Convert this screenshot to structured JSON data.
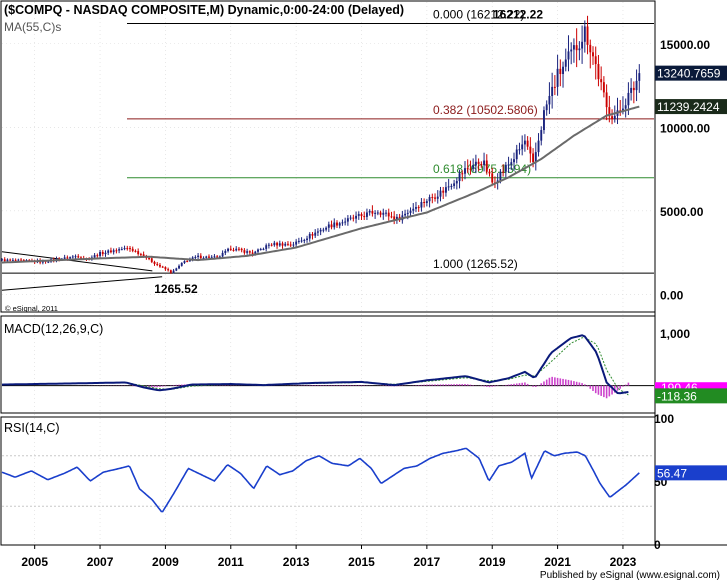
{
  "colors": {
    "background": "#ffffff",
    "frame": "#000000",
    "grid": "#d8d8d8",
    "candle_up": "#1a237e",
    "candle_down": "#cc0000",
    "ma_line": "#6a6a6a",
    "fib_top": "#000000",
    "fib_382": "#8b1a1a",
    "fib_618": "#2e8b2e",
    "fib_100": "#000000",
    "trendline": "#000000",
    "macd_line": "#0a1a7a",
    "macd_signal": "#2e8b2e",
    "histogram": "#cc44cc",
    "rsi_line": "#1a3fcc",
    "rsi_ref": "#c8c8c8",
    "last_price_box": "#0a1a3a",
    "ma_box": "#1a2a1a",
    "macd_box": "#ff00ff",
    "macd_value_box": "#228b22"
  },
  "chart_data": [
    {
      "panel": "price",
      "type": "candlestick",
      "title": "($COMPQ - NASDAQ COMPOSITE,M) Dynamic,0:00-24:00 (Delayed)",
      "ma_label": "MA(55,C)s",
      "watermark": "© eSignal, 2011",
      "ylim": [
        -1000,
        17500
      ],
      "y_ticks": [
        {
          "value": 0,
          "label": "0.00"
        },
        {
          "value": 5000,
          "label": "5000.00"
        },
        {
          "value": 10000,
          "label": "10000.00"
        },
        {
          "value": 15000,
          "label": "15000.00"
        }
      ],
      "x_ticks": [
        "2005",
        "2007",
        "2009",
        "2011",
        "2013",
        "2015",
        "2017",
        "2019",
        "2021",
        "2023"
      ],
      "x_tick_years": [
        2005,
        2007,
        2009,
        2011,
        2013,
        2015,
        2017,
        2019,
        2021,
        2023
      ],
      "last_price": {
        "value": 13240.7659,
        "label": "13240.7659"
      },
      "ma_value": {
        "value": 11239.2424,
        "label": "11239.2424"
      },
      "peak_label": {
        "value": 16212.22,
        "year": 2021.9,
        "label": "16212.22"
      },
      "low_label": {
        "value": 1265.52,
        "year": 2009.2,
        "label": "1265.52"
      },
      "fib_levels": [
        {
          "ratio": 0.0,
          "value": 16212.22,
          "label": "0.000 (16212.22)"
        },
        {
          "ratio": 0.382,
          "value": 10502.5806,
          "label": "0.382 (10502.5806)"
        },
        {
          "ratio": 0.618,
          "value": 6975.1594,
          "label": "0.618 (6975.1594)"
        },
        {
          "ratio": 1.0,
          "value": 1265.52,
          "label": "1.000 (1265.52)"
        }
      ],
      "trendline": [
        {
          "year": 2004.0,
          "value": 2550
        },
        {
          "year": 2008.6,
          "value": 1400
        }
      ],
      "close_anchors": [
        [
          2004.0,
          2050
        ],
        [
          2004.6,
          2000
        ],
        [
          2005.2,
          1950
        ],
        [
          2005.9,
          2150
        ],
        [
          2006.3,
          2300
        ],
        [
          2006.6,
          2100
        ],
        [
          2007.0,
          2450
        ],
        [
          2007.6,
          2700
        ],
        [
          2007.9,
          2750
        ],
        [
          2008.3,
          2350
        ],
        [
          2008.8,
          1700
        ],
        [
          2009.2,
          1300
        ],
        [
          2009.6,
          2000
        ],
        [
          2010.0,
          2250
        ],
        [
          2010.6,
          2200
        ],
        [
          2011.0,
          2750
        ],
        [
          2011.7,
          2450
        ],
        [
          2012.2,
          3000
        ],
        [
          2012.9,
          3000
        ],
        [
          2013.5,
          3600
        ],
        [
          2014.0,
          4100
        ],
        [
          2014.6,
          4450
        ],
        [
          2015.5,
          5000
        ],
        [
          2016.1,
          4500
        ],
        [
          2016.6,
          5200
        ],
        [
          2017.5,
          6200
        ],
        [
          2018.2,
          7500
        ],
        [
          2018.7,
          8000
        ],
        [
          2019.0,
          6700
        ],
        [
          2019.6,
          8000
        ],
        [
          2020.0,
          9150
        ],
        [
          2020.25,
          7700
        ],
        [
          2020.6,
          11000
        ],
        [
          2021.0,
          13100
        ],
        [
          2021.5,
          14600
        ],
        [
          2021.85,
          15800
        ],
        [
          2022.2,
          13500
        ],
        [
          2022.5,
          11100
        ],
        [
          2022.8,
          10600
        ],
        [
          2023.0,
          11400
        ],
        [
          2023.3,
          12200
        ],
        [
          2023.5,
          13240.7659
        ]
      ],
      "ma_anchors": [
        [
          2004.0,
          1900
        ],
        [
          2007.0,
          2150
        ],
        [
          2008.5,
          2250
        ],
        [
          2010.0,
          2050
        ],
        [
          2011.5,
          2300
        ],
        [
          2013.0,
          2800
        ],
        [
          2015.0,
          3950
        ],
        [
          2017.0,
          4900
        ],
        [
          2018.5,
          6100
        ],
        [
          2019.5,
          7000
        ],
        [
          2020.5,
          8100
        ],
        [
          2021.5,
          9500
        ],
        [
          2022.5,
          10700
        ],
        [
          2023.5,
          11239.2424
        ]
      ]
    },
    {
      "panel": "macd",
      "type": "line",
      "title": "MACD(12,26,9,C)",
      "ylim": [
        -500,
        1300
      ],
      "zero_line": 0,
      "y_ticks": [
        {
          "value": 1000,
          "label": "1,000"
        }
      ],
      "macd_value": {
        "value": -118.36,
        "label": "-118.36"
      },
      "signal_value_label": "-190.46",
      "macd_anchors": [
        [
          2004.0,
          20
        ],
        [
          2006.0,
          40
        ],
        [
          2007.8,
          60
        ],
        [
          2008.3,
          -30
        ],
        [
          2008.8,
          -90
        ],
        [
          2009.2,
          -60
        ],
        [
          2009.8,
          20
        ],
        [
          2011.0,
          30
        ],
        [
          2012.0,
          10
        ],
        [
          2013.5,
          50
        ],
        [
          2015.0,
          70
        ],
        [
          2016.0,
          10
        ],
        [
          2017.0,
          100
        ],
        [
          2018.2,
          180
        ],
        [
          2018.9,
          60
        ],
        [
          2019.5,
          140
        ],
        [
          2020.0,
          260
        ],
        [
          2020.3,
          140
        ],
        [
          2020.8,
          620
        ],
        [
          2021.4,
          900
        ],
        [
          2021.8,
          960
        ],
        [
          2022.2,
          620
        ],
        [
          2022.5,
          60
        ],
        [
          2022.85,
          -150
        ],
        [
          2023.2,
          -118.36
        ]
      ],
      "signal_anchors": [
        [
          2004.0,
          20
        ],
        [
          2006.0,
          40
        ],
        [
          2007.8,
          55
        ],
        [
          2008.3,
          0
        ],
        [
          2008.8,
          -60
        ],
        [
          2009.2,
          -70
        ],
        [
          2009.8,
          -10
        ],
        [
          2011.0,
          25
        ],
        [
          2012.0,
          15
        ],
        [
          2013.5,
          40
        ],
        [
          2015.0,
          60
        ],
        [
          2016.0,
          25
        ],
        [
          2017.0,
          80
        ],
        [
          2018.2,
          150
        ],
        [
          2018.9,
          90
        ],
        [
          2019.5,
          120
        ],
        [
          2020.0,
          200
        ],
        [
          2020.3,
          180
        ],
        [
          2020.8,
          450
        ],
        [
          2021.4,
          800
        ],
        [
          2021.8,
          920
        ],
        [
          2022.2,
          780
        ],
        [
          2022.5,
          300
        ],
        [
          2022.85,
          -60
        ],
        [
          2023.2,
          -190.46
        ]
      ]
    },
    {
      "panel": "rsi",
      "type": "line",
      "title": "RSI(14,C)",
      "ylim": [
        0,
        100
      ],
      "y_ticks": [
        {
          "value": 0,
          "label": "0"
        },
        {
          "value": 50,
          "label": "50"
        },
        {
          "value": 100,
          "label": "100"
        }
      ],
      "ref_levels": [
        30,
        70
      ],
      "last_value": {
        "value": 56.47,
        "label": "56.47"
      },
      "rsi_anchors": [
        [
          2004.0,
          57
        ],
        [
          2004.4,
          53
        ],
        [
          2004.9,
          58
        ],
        [
          2005.4,
          51
        ],
        [
          2005.9,
          56
        ],
        [
          2006.3,
          61
        ],
        [
          2006.7,
          50
        ],
        [
          2007.1,
          57
        ],
        [
          2007.6,
          60
        ],
        [
          2007.9,
          62
        ],
        [
          2008.2,
          44
        ],
        [
          2008.6,
          35
        ],
        [
          2008.9,
          25
        ],
        [
          2009.3,
          42
        ],
        [
          2009.7,
          60
        ],
        [
          2010.1,
          55
        ],
        [
          2010.5,
          50
        ],
        [
          2010.9,
          63
        ],
        [
          2011.3,
          56
        ],
        [
          2011.7,
          44
        ],
        [
          2012.1,
          62
        ],
        [
          2012.5,
          55
        ],
        [
          2012.9,
          58
        ],
        [
          2013.3,
          66
        ],
        [
          2013.7,
          70
        ],
        [
          2014.1,
          64
        ],
        [
          2014.6,
          62
        ],
        [
          2014.95,
          68
        ],
        [
          2015.3,
          60
        ],
        [
          2015.6,
          48
        ],
        [
          2015.95,
          54
        ],
        [
          2016.3,
          60
        ],
        [
          2016.7,
          62
        ],
        [
          2017.1,
          68
        ],
        [
          2017.5,
          72
        ],
        [
          2017.9,
          74
        ],
        [
          2018.2,
          76
        ],
        [
          2018.6,
          68
        ],
        [
          2018.9,
          50
        ],
        [
          2019.2,
          62
        ],
        [
          2019.6,
          65
        ],
        [
          2020.0,
          72
        ],
        [
          2020.2,
          52
        ],
        [
          2020.6,
          74
        ],
        [
          2020.9,
          70
        ],
        [
          2021.2,
          72
        ],
        [
          2021.6,
          73
        ],
        [
          2021.85,
          70
        ],
        [
          2022.1,
          58
        ],
        [
          2022.3,
          48
        ],
        [
          2022.6,
          37
        ],
        [
          2022.85,
          42
        ],
        [
          2023.1,
          47
        ],
        [
          2023.5,
          56.47
        ]
      ]
    }
  ],
  "footer": {
    "credit": "Published by eSignal (www.esignal.com)"
  }
}
